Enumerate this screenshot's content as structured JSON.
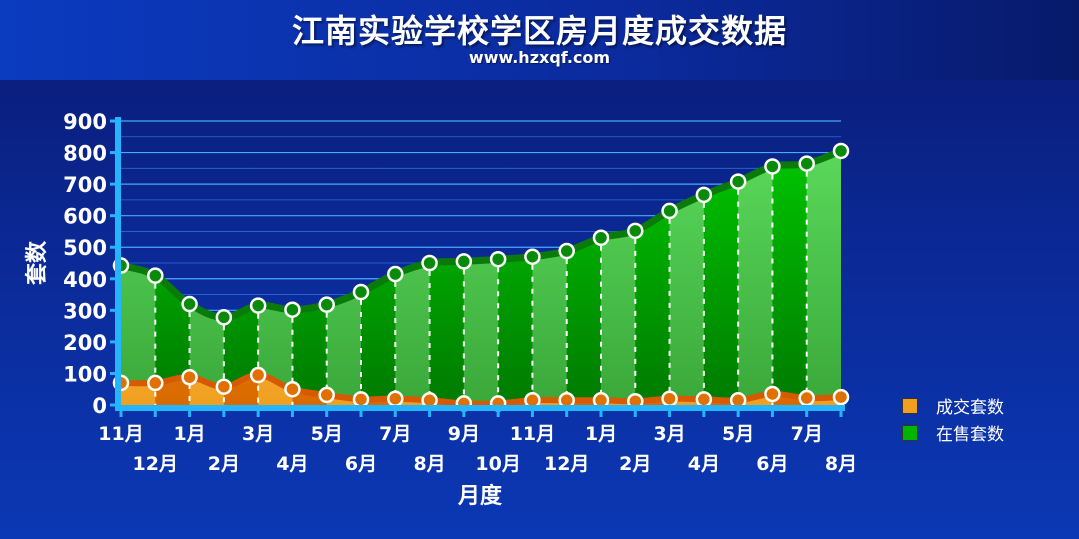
{
  "title": "江南实验学校学区房月度成交数据",
  "subtitle": "www.hzxqf.com",
  "colors": {
    "deal": "#f0a020",
    "sale": "#00b400",
    "grid": "#4aa8ff",
    "axis": "#ffffff"
  },
  "chart_data": {
    "type": "area",
    "categories": [
      "11月",
      "12月",
      "1月",
      "2月",
      "3月",
      "4月",
      "5月",
      "6月",
      "7月",
      "8月",
      "9月",
      "10月",
      "11月",
      "12月",
      "1月",
      "2月",
      "3月",
      "4月",
      "5月",
      "6月",
      "7月",
      "8月"
    ],
    "xlabel": "月度",
    "ylabel": "套数",
    "ylim": [
      0,
      900
    ],
    "yticks": [
      "0",
      "100",
      "200",
      "300",
      "400",
      "500",
      "600",
      "700",
      "800",
      "900"
    ],
    "grid": true,
    "legend_position": "right",
    "series": [
      {
        "name": "成交套数",
        "color": "#f0a020",
        "values": [
          70,
          70,
          88,
          58,
          95,
          50,
          32,
          18,
          20,
          15,
          5,
          5,
          15,
          15,
          15,
          12,
          20,
          18,
          15,
          35,
          22,
          25
        ]
      },
      {
        "name": "在售套数",
        "color": "#00b400",
        "values": [
          442,
          410,
          320,
          278,
          315,
          302,
          318,
          358,
          415,
          450,
          455,
          462,
          470,
          488,
          530,
          552,
          615,
          666,
          708,
          756,
          765,
          805
        ]
      }
    ]
  }
}
